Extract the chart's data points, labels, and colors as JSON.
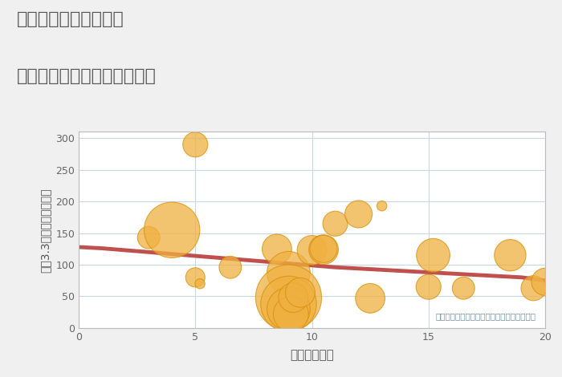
{
  "title_line1": "福岡県宗像市桜美台の",
  "title_line2": "駅距離別中古マンション価格",
  "xlabel": "駅距離（分）",
  "ylabel": "坪（3.3㎡）単価（万円）",
  "background_color": "#f0f0f0",
  "plot_bg_color": "#ffffff",
  "bubble_color": "#f0b040",
  "bubble_edge_color": "#d4900a",
  "bubble_alpha": 0.75,
  "trend_color": "#c0504d",
  "trend_linewidth": 3.5,
  "grid_color": "#c8d8e8",
  "annotation_text": "円の大きさは、取引のあった物件面積を示す",
  "annotation_color": "#7090a0",
  "title_color": "#555555",
  "axis_label_color": "#555555",
  "tick_color": "#666666",
  "xlim": [
    0,
    20
  ],
  "ylim": [
    0,
    310
  ],
  "xticks": [
    0,
    5,
    10,
    15,
    20
  ],
  "yticks": [
    0,
    50,
    100,
    150,
    200,
    250,
    300
  ],
  "scatter_x": [
    3.0,
    4.0,
    5.0,
    5.0,
    5.2,
    6.5,
    8.5,
    9.0,
    9.0,
    9.0,
    9.0,
    9.1,
    9.2,
    9.5,
    10.0,
    10.5,
    10.5,
    11.0,
    12.0,
    12.5,
    13.0,
    15.0,
    15.2,
    16.5,
    18.5,
    19.5,
    20.0
  ],
  "scatter_y": [
    143,
    155,
    290,
    80,
    70,
    96,
    125,
    87,
    48,
    38,
    30,
    22,
    48,
    56,
    123,
    124,
    125,
    165,
    180,
    47,
    193,
    65,
    115,
    63,
    115,
    63,
    73
  ],
  "scatter_size": [
    400,
    2500,
    500,
    300,
    80,
    400,
    700,
    1500,
    3500,
    2500,
    1500,
    1000,
    700,
    700,
    700,
    700,
    600,
    500,
    600,
    700,
    80,
    500,
    900,
    400,
    800,
    500,
    600
  ],
  "trend_x": [
    0,
    0.5,
    1,
    2,
    3,
    4,
    5,
    6,
    7,
    8,
    9,
    10,
    11,
    12,
    13,
    14,
    15,
    16,
    17,
    18,
    19,
    20
  ],
  "trend_y": [
    128,
    127,
    126,
    123,
    120,
    117,
    114,
    111,
    108,
    105,
    102,
    99,
    96,
    94,
    92,
    90,
    88,
    86,
    84,
    82,
    80,
    75
  ]
}
